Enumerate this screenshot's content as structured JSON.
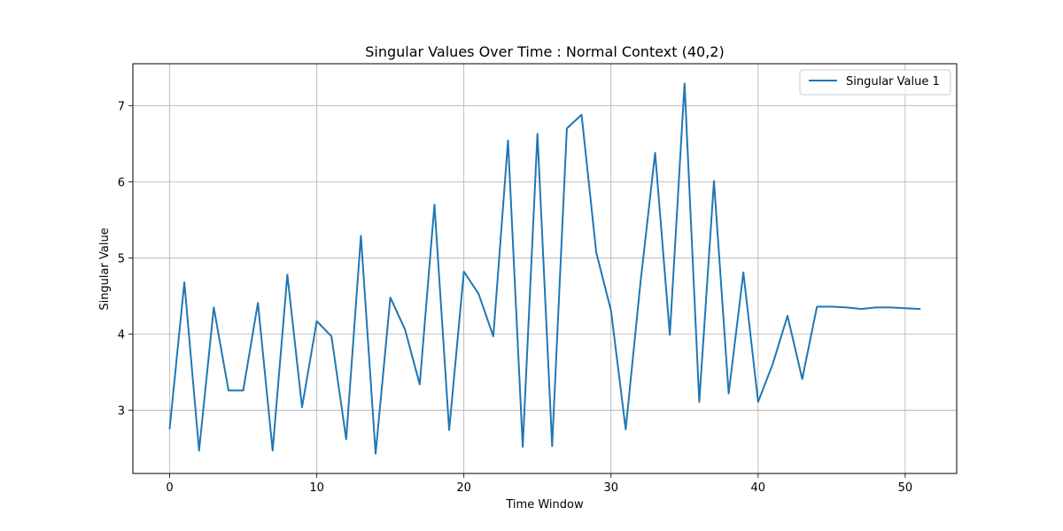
{
  "chart_data": {
    "type": "line",
    "title": "Singular Values Over Time : Normal Context (40,2)",
    "xlabel": "Time Window",
    "ylabel": "Singular Value",
    "xlim": [
      -2.5,
      53.5
    ],
    "ylim": [
      2.17,
      7.55
    ],
    "x_ticks": [
      0,
      10,
      20,
      30,
      40,
      50
    ],
    "y_ticks": [
      3,
      4,
      5,
      6,
      7
    ],
    "grid": true,
    "legend_position": "top-right",
    "series": [
      {
        "name": "Singular Value 1",
        "color": "#1f77b4",
        "x": [
          0,
          1,
          2,
          3,
          4,
          5,
          6,
          7,
          8,
          9,
          10,
          11,
          12,
          13,
          14,
          15,
          16,
          17,
          18,
          19,
          20,
          21,
          22,
          23,
          24,
          25,
          26,
          27,
          28,
          29,
          30,
          31,
          32,
          33,
          34,
          35,
          36,
          37,
          38,
          39,
          40,
          41,
          42,
          43,
          44,
          45,
          46,
          47,
          48,
          49,
          50,
          51
        ],
        "values": [
          2.76,
          4.68,
          2.47,
          4.35,
          3.26,
          3.26,
          4.41,
          2.47,
          4.78,
          3.04,
          4.17,
          3.97,
          2.62,
          5.29,
          2.43,
          4.48,
          4.06,
          3.34,
          5.7,
          2.74,
          4.82,
          4.53,
          3.97,
          6.54,
          2.52,
          6.63,
          2.53,
          6.7,
          6.88,
          5.07,
          4.31,
          2.75,
          4.67,
          6.38,
          3.99,
          7.29,
          3.11,
          6.01,
          3.22,
          4.81,
          3.11,
          3.61,
          4.24,
          3.41,
          4.36,
          4.36,
          4.35,
          4.33,
          4.35,
          4.35,
          4.34,
          4.33
        ]
      }
    ]
  }
}
